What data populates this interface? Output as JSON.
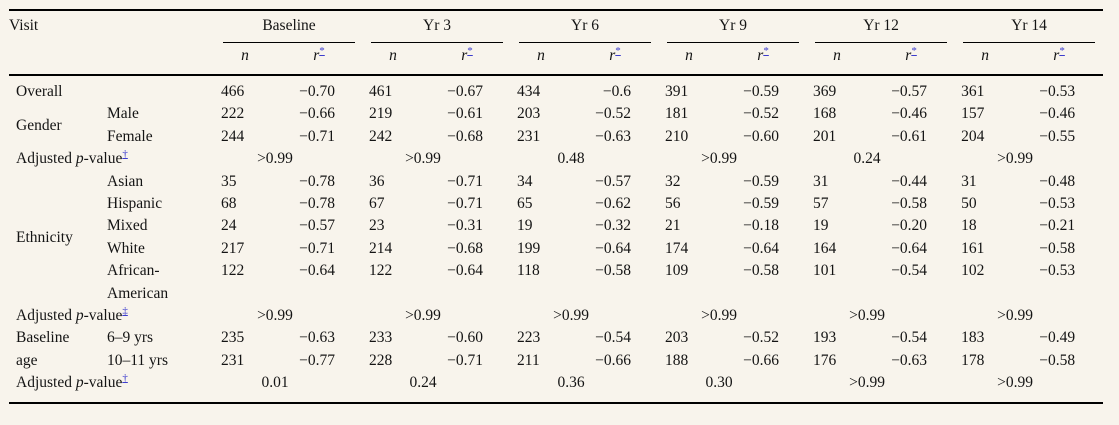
{
  "page": {
    "background_color": "#f8f4ec",
    "rule_color": "#000000",
    "link_color": "#3c3ccd",
    "text_color": "#141414"
  },
  "table": {
    "corner_label": "Visit",
    "visits": [
      "Baseline",
      "Yr 3",
      "Yr 6",
      "Yr 9",
      "Yr 12",
      "Yr 14"
    ],
    "sub_n": "n",
    "sub_r": "r",
    "sub_r_marker": "*",
    "p_label_pre": "Adjusted ",
    "p_label_italic": "p",
    "p_label_post": "-value",
    "rows": [
      {
        "kind": "data",
        "label": "Overall",
        "values": [
          "466",
          "−0.70",
          "461",
          "−0.67",
          "434",
          "−0.6",
          "391",
          "−0.59",
          "369",
          "−0.57",
          "361",
          "−0.53"
        ]
      },
      {
        "kind": "data",
        "group": {
          "label": "Gender",
          "rowspan": 2
        },
        "sub": "Male",
        "values": [
          "222",
          "−0.66",
          "219",
          "−0.61",
          "203",
          "−0.52",
          "181",
          "−0.52",
          "168",
          "−0.46",
          "157",
          "−0.46"
        ]
      },
      {
        "kind": "data",
        "sub": "Female",
        "values": [
          "244",
          "−0.71",
          "242",
          "−0.68",
          "231",
          "−0.63",
          "210",
          "−0.60",
          "201",
          "−0.61",
          "204",
          "−0.55"
        ]
      },
      {
        "kind": "pvalue",
        "marker": "†",
        "values": [
          ">0.99",
          ">0.99",
          "0.48",
          ">0.99",
          "0.24",
          ">0.99"
        ]
      },
      {
        "kind": "data",
        "group": {
          "label": "Ethnicity",
          "rowspan": 5
        },
        "sub": "Asian",
        "values": [
          "35",
          "−0.78",
          "36",
          "−0.71",
          "34",
          "−0.57",
          "32",
          "−0.59",
          "31",
          "−0.44",
          "31",
          "−0.48"
        ]
      },
      {
        "kind": "data",
        "sub": "Hispanic",
        "values": [
          "68",
          "−0.78",
          "67",
          "−0.71",
          "65",
          "−0.62",
          "56",
          "−0.59",
          "57",
          "−0.58",
          "50",
          "−0.53"
        ]
      },
      {
        "kind": "data",
        "sub": "Mixed",
        "values": [
          "24",
          "−0.57",
          "23",
          "−0.31",
          "19",
          "−0.32",
          "21",
          "−0.18",
          "19",
          "−0.20",
          "18",
          "−0.21"
        ]
      },
      {
        "kind": "data",
        "sub": "White",
        "values": [
          "217",
          "−0.71",
          "214",
          "−0.68",
          "199",
          "−0.64",
          "174",
          "−0.64",
          "164",
          "−0.64",
          "161",
          "−0.58"
        ]
      },
      {
        "kind": "data",
        "sub": "African-American",
        "values": [
          "122",
          "−0.64",
          "122",
          "−0.64",
          "118",
          "−0.58",
          "109",
          "−0.58",
          "101",
          "−0.54",
          "102",
          "−0.53"
        ]
      },
      {
        "kind": "pvalue",
        "marker": "‡",
        "values": [
          ">0.99",
          ">0.99",
          ">0.99",
          ">0.99",
          ">0.99",
          ">0.99"
        ]
      },
      {
        "kind": "data",
        "group": {
          "label": "Baseline age",
          "rowspan": 2
        },
        "sub": "6–9 yrs",
        "values": [
          "235",
          "−0.63",
          "233",
          "−0.60",
          "223",
          "−0.54",
          "203",
          "−0.52",
          "193",
          "−0.54",
          "183",
          "−0.49"
        ]
      },
      {
        "kind": "data",
        "sub": "10–11 yrs",
        "values": [
          "231",
          "−0.77",
          "228",
          "−0.71",
          "211",
          "−0.66",
          "188",
          "−0.66",
          "176",
          "−0.63",
          "178",
          "−0.58"
        ]
      },
      {
        "kind": "pvalue",
        "marker": "†",
        "values": [
          "0.01",
          "0.24",
          "0.36",
          "0.30",
          ">0.99",
          ">0.99"
        ]
      }
    ]
  }
}
